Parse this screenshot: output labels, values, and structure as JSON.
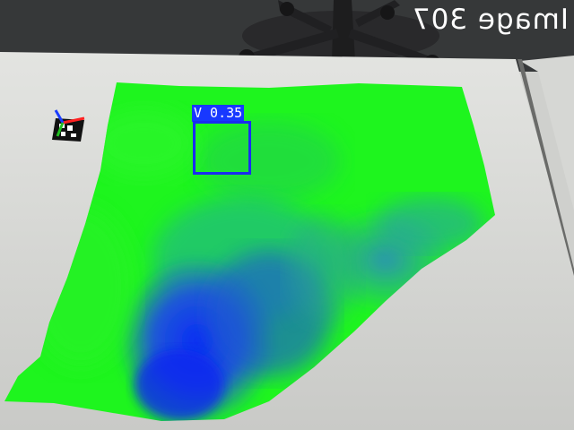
{
  "overlay": {
    "caption": "Image 307"
  },
  "detection": {
    "label": "V 0.35",
    "color": "#1a2cf0"
  },
  "heatmap": {
    "high_color": "#1ef51e",
    "low_color": "#1433e0"
  },
  "scene": {
    "table_color": "#d9dad6",
    "floor_color": "#3a3b3c"
  }
}
